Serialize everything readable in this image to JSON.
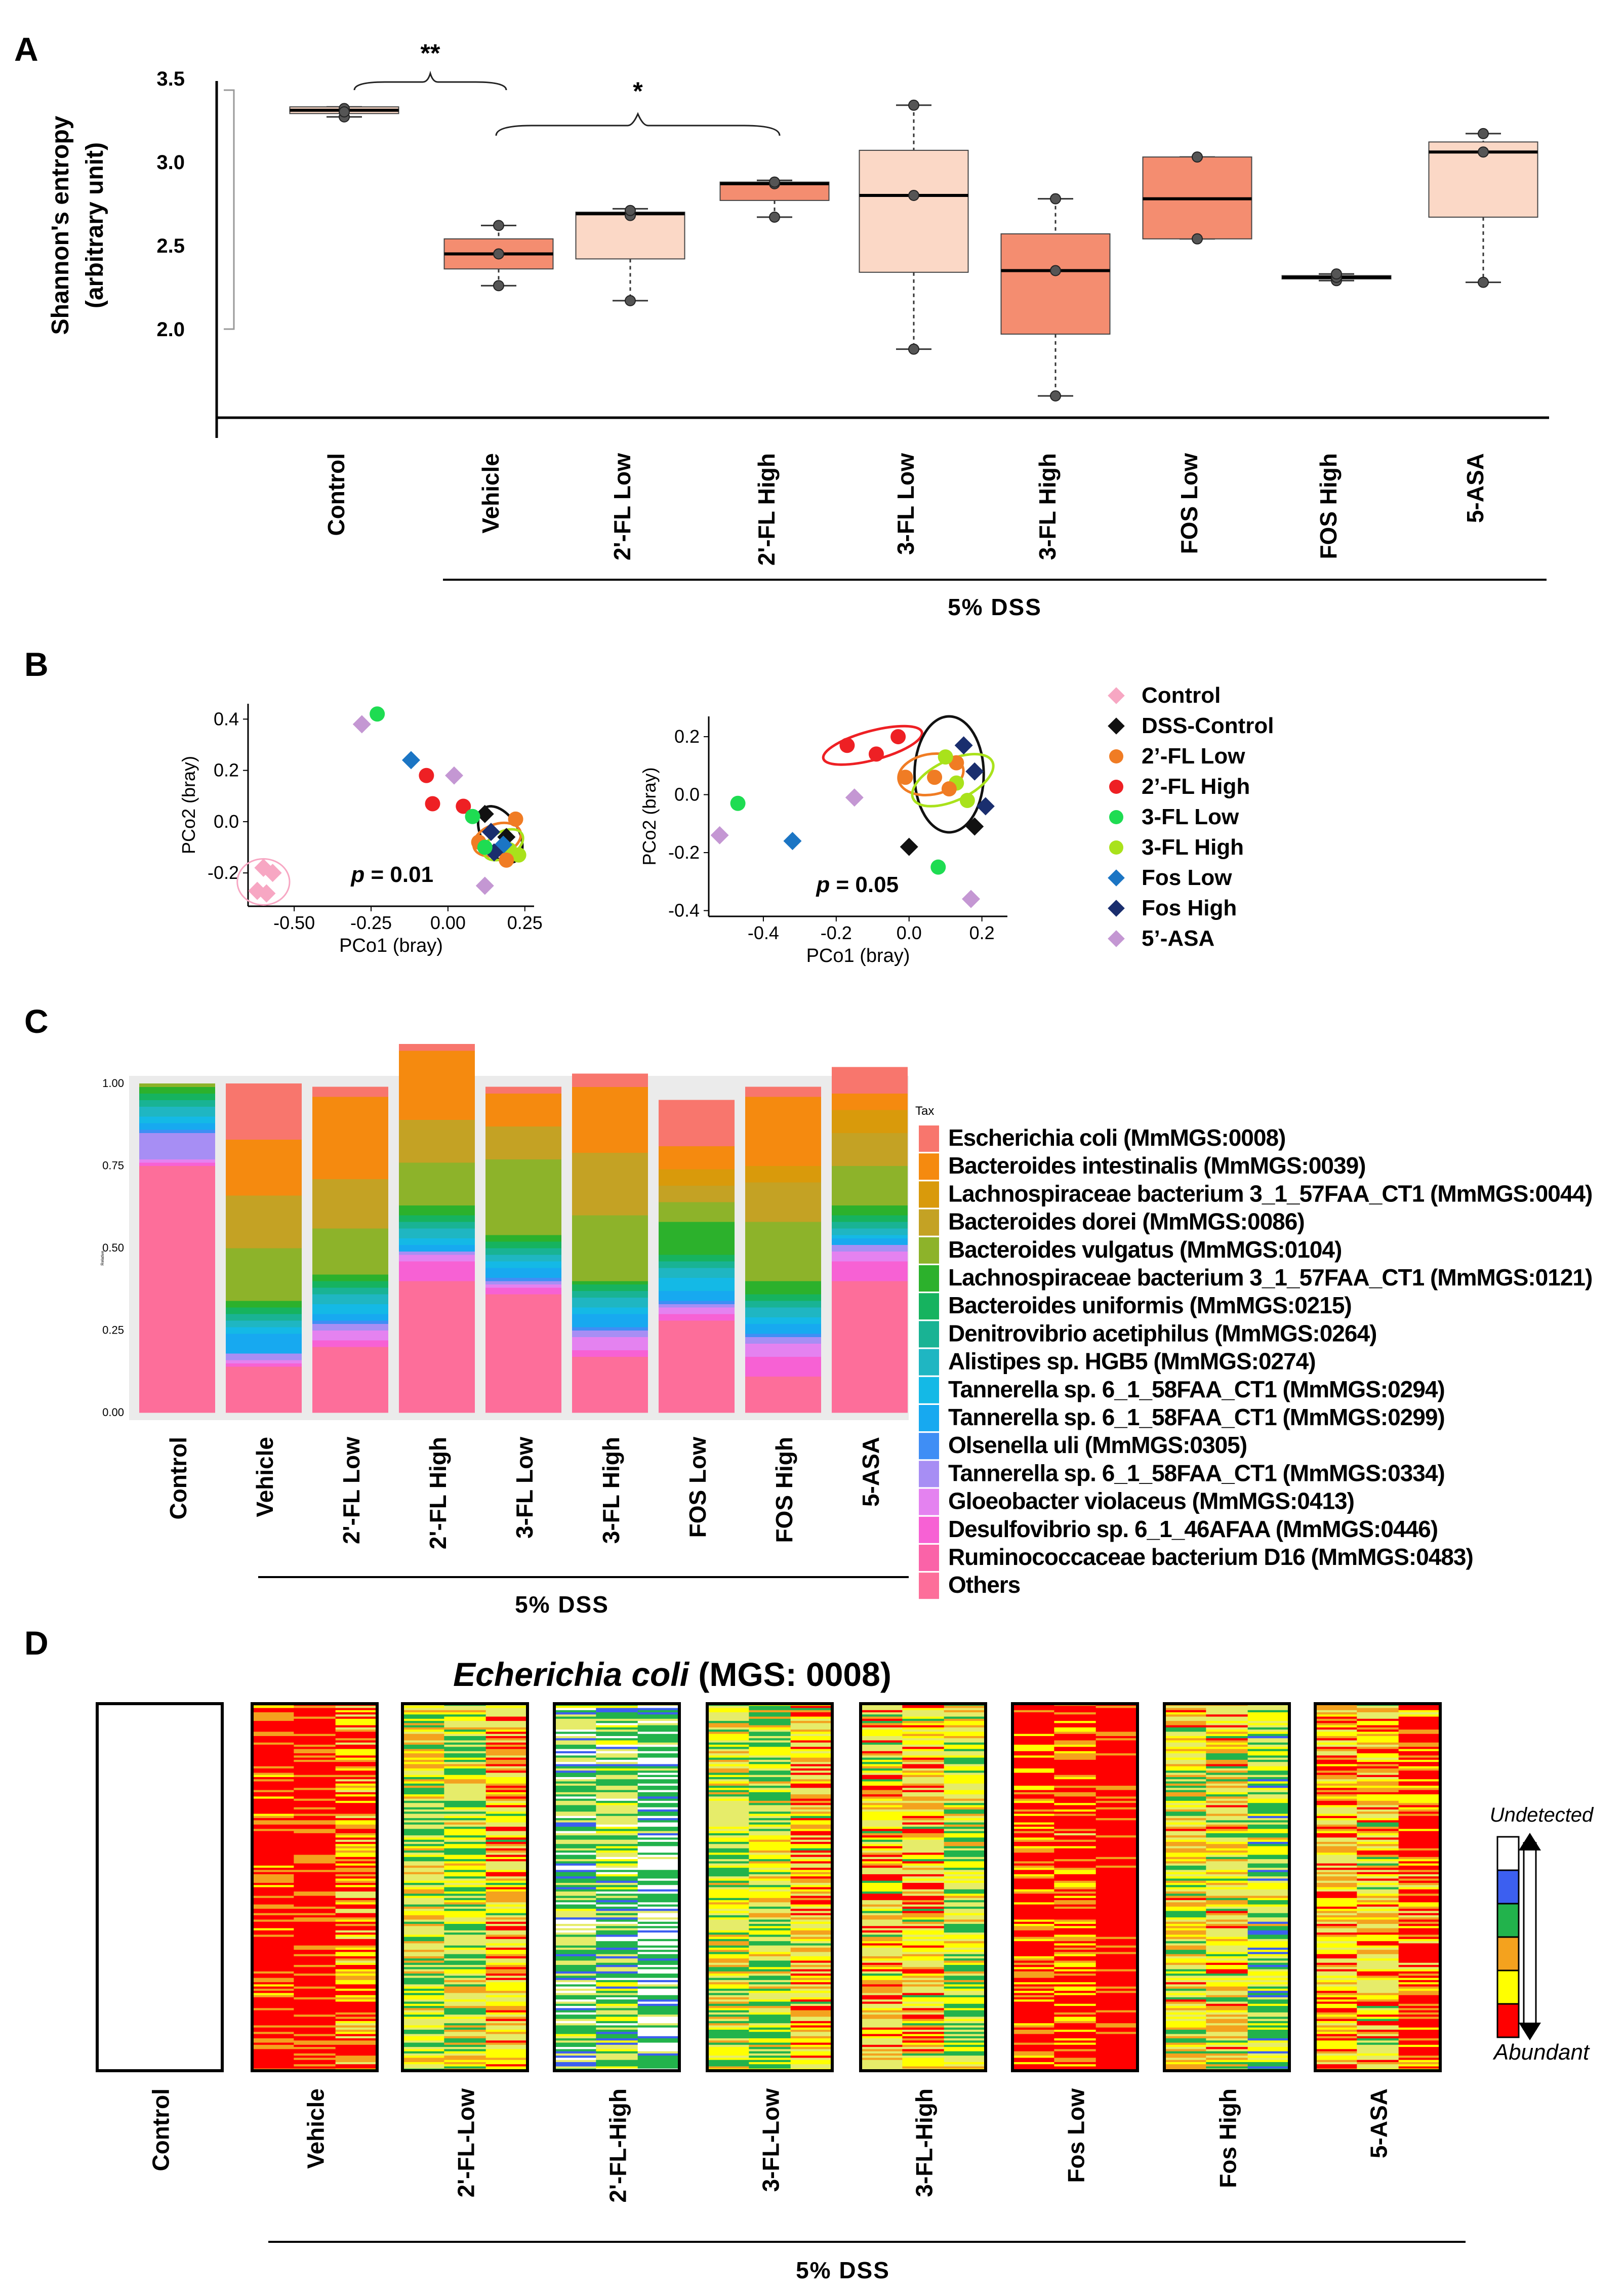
{
  "panels": {
    "a": "A",
    "b": "B",
    "c": "C",
    "d": "D"
  },
  "chart_data": [
    {
      "id": "A",
      "type": "boxplot",
      "ylabel": "Shannon's entropy",
      "ylabel2": "(arbitrary unit)",
      "yticks": [
        "3.5",
        "3.0",
        "2.5",
        "2.0"
      ],
      "ylim": [
        1.5,
        3.5
      ],
      "group_label": "5% DSS",
      "boxes": [
        {
          "label": "Control",
          "color": "#fbd8c6",
          "whisker_low": 3.27,
          "q1": 3.29,
          "median": 3.31,
          "q3": 3.33,
          "whisker_high": 3.33,
          "points": [
            3.27,
            3.32,
            3.3
          ]
        },
        {
          "label": "Vehicle",
          "color": "#f48d70",
          "whisker_low": 2.26,
          "q1": 2.36,
          "median": 2.45,
          "q3": 2.54,
          "whisker_high": 2.62,
          "points": [
            2.26,
            2.45,
            2.62
          ]
        },
        {
          "label": "2'-FL Low",
          "color": "#fbd8c6",
          "whisker_low": 2.17,
          "q1": 2.42,
          "median": 2.69,
          "q3": 2.7,
          "whisker_high": 2.72,
          "points": [
            2.17,
            2.68,
            2.71
          ]
        },
        {
          "label": "2'-FL High",
          "color": "#f48d70",
          "whisker_low": 2.67,
          "q1": 2.77,
          "median": 2.87,
          "q3": 2.88,
          "whisker_high": 2.89,
          "points": [
            2.67,
            2.87,
            2.88
          ]
        },
        {
          "label": "3-FL Low",
          "color": "#fbd8c6",
          "whisker_low": 1.88,
          "q1": 2.34,
          "median": 2.8,
          "q3": 3.07,
          "whisker_high": 3.34,
          "points": [
            1.88,
            2.8,
            3.34
          ]
        },
        {
          "label": "3-FL High",
          "color": "#f48d70",
          "whisker_low": 1.6,
          "q1": 1.97,
          "median": 2.35,
          "q3": 2.57,
          "whisker_high": 2.78,
          "points": [
            1.6,
            2.35,
            2.78
          ]
        },
        {
          "label": "FOS Low",
          "color": "#f48d70",
          "whisker_low": 2.54,
          "q1": 2.54,
          "median": 2.78,
          "q3": 3.03,
          "whisker_high": 3.03,
          "points": [
            2.54,
            3.03
          ]
        },
        {
          "label": "FOS High",
          "color": "#f48d70",
          "whisker_low": 2.29,
          "q1": 2.3,
          "median": 2.31,
          "q3": 2.32,
          "whisker_high": 2.33,
          "points": [
            2.29,
            2.31,
            2.33
          ]
        },
        {
          "label": "5-ASA",
          "color": "#fbd8c6",
          "whisker_low": 2.28,
          "q1": 2.67,
          "median": 3.06,
          "q3": 3.12,
          "whisker_high": 3.17,
          "points": [
            2.28,
            3.06,
            3.17
          ]
        }
      ],
      "significance": [
        {
          "from": "Control",
          "to": "Vehicle",
          "label": "**"
        },
        {
          "from": "Vehicle",
          "to": "2'-FL High",
          "label": "*"
        }
      ]
    },
    {
      "id": "B1",
      "type": "scatter",
      "xlabel": "PCo1 (bray)",
      "ylabel": "PCo2 (bray)",
      "xlim": [
        -0.65,
        0.28
      ],
      "ylim": [
        -0.33,
        0.46
      ],
      "xticks": [
        -0.5,
        -0.25,
        0,
        0.25
      ],
      "xtick_labels": [
        "-0.50",
        "-0.25",
        "0.00",
        "0.25"
      ],
      "yticks": [
        -0.2,
        0,
        0.2,
        0.4
      ],
      "ytick_labels": [
        "-0.2",
        "0.0",
        "0.2",
        "0.4"
      ],
      "p_label": "p",
      "p_value": "= 0.01",
      "points": [
        {
          "x": -0.6,
          "y": -0.18,
          "group": "Control"
        },
        {
          "x": -0.62,
          "y": -0.27,
          "group": "Control"
        },
        {
          "x": -0.59,
          "y": -0.28,
          "group": "Control"
        },
        {
          "x": -0.57,
          "y": -0.2,
          "group": "Control"
        },
        {
          "x": -0.23,
          "y": 0.42,
          "group": "3-FL Low"
        },
        {
          "x": -0.28,
          "y": 0.38,
          "group": "5'-ASA"
        },
        {
          "x": -0.12,
          "y": 0.24,
          "group": "Fos Low"
        },
        {
          "x": -0.07,
          "y": 0.18,
          "group": "2'-FL High"
        },
        {
          "x": 0.02,
          "y": 0.18,
          "group": "5'-ASA"
        },
        {
          "x": -0.05,
          "y": 0.07,
          "group": "2'-FL High"
        },
        {
          "x": 0.05,
          "y": 0.06,
          "group": "2'-FL High"
        },
        {
          "x": 0.12,
          "y": 0.03,
          "group": "DSS-Control"
        },
        {
          "x": 0.08,
          "y": 0.02,
          "group": "3-FL Low"
        },
        {
          "x": 0.22,
          "y": 0.01,
          "group": "2'-FL Low"
        },
        {
          "x": 0.14,
          "y": -0.04,
          "group": "Fos High"
        },
        {
          "x": 0.19,
          "y": -0.06,
          "group": "DSS-Control"
        },
        {
          "x": 0.1,
          "y": -0.08,
          "group": "2'-FL Low"
        },
        {
          "x": 0.2,
          "y": -0.11,
          "group": "3-FL High"
        },
        {
          "x": 0.23,
          "y": -0.13,
          "group": "3-FL High"
        },
        {
          "x": 0.18,
          "y": -0.09,
          "group": "Fos Low"
        },
        {
          "x": 0.15,
          "y": -0.12,
          "group": "Fos High"
        },
        {
          "x": 0.12,
          "y": -0.1,
          "group": "3-FL Low"
        },
        {
          "x": 0.19,
          "y": -0.15,
          "group": "2'-FL Low"
        },
        {
          "x": 0.12,
          "y": -0.25,
          "group": "5'-ASA"
        }
      ],
      "ellipses": [
        {
          "group": "Control",
          "cx": -0.6,
          "cy": -0.235,
          "rx": 0.085,
          "ry": 0.09,
          "angle": 0
        },
        {
          "group": "DSS-Control",
          "cx": 0.17,
          "cy": -0.05,
          "rx": 0.06,
          "ry": 0.12,
          "angle": -30
        },
        {
          "group": "2'-FL Low",
          "cx": 0.16,
          "cy": -0.07,
          "rx": 0.08,
          "ry": 0.06,
          "angle": -20
        },
        {
          "group": "3-FL High",
          "cx": 0.18,
          "cy": -0.09,
          "rx": 0.07,
          "ry": 0.05,
          "angle": -30
        }
      ]
    },
    {
      "id": "B2",
      "type": "scatter",
      "xlabel": "PCo1 (bray)",
      "ylabel": "PCo2 (bray)",
      "xlim": [
        -0.55,
        0.27
      ],
      "ylim": [
        -0.42,
        0.27
      ],
      "xticks": [
        -0.4,
        -0.2,
        0,
        0.2
      ],
      "xtick_labels": [
        "-0.4",
        "-0.2",
        "0.0",
        "0.2"
      ],
      "yticks": [
        -0.4,
        -0.2,
        0,
        0.2
      ],
      "ytick_labels": [
        "-0.4",
        "-0.2",
        "0.0",
        "0.2"
      ],
      "p_label": "p",
      "p_value": "= 0.05",
      "points": [
        {
          "x": -0.17,
          "y": 0.17,
          "group": "2'-FL High"
        },
        {
          "x": -0.03,
          "y": 0.2,
          "group": "2'-FL High"
        },
        {
          "x": -0.09,
          "y": 0.14,
          "group": "2'-FL High"
        },
        {
          "x": 0.15,
          "y": 0.17,
          "group": "Fos High"
        },
        {
          "x": 0.13,
          "y": 0.11,
          "group": "2'-FL Low"
        },
        {
          "x": 0.1,
          "y": 0.13,
          "group": "3-FL High"
        },
        {
          "x": 0.07,
          "y": 0.06,
          "group": "2'-FL Low"
        },
        {
          "x": -0.01,
          "y": 0.06,
          "group": "2'-FL Low"
        },
        {
          "x": 0.18,
          "y": 0.08,
          "group": "Fos High"
        },
        {
          "x": 0.13,
          "y": 0.04,
          "group": "3-FL High"
        },
        {
          "x": 0.11,
          "y": 0.02,
          "group": "2'-FL Low"
        },
        {
          "x": 0.16,
          "y": -0.02,
          "group": "3-FL High"
        },
        {
          "x": 0.21,
          "y": -0.04,
          "group": "Fos High"
        },
        {
          "x": -0.47,
          "y": -0.03,
          "group": "3-FL Low"
        },
        {
          "x": -0.15,
          "y": -0.01,
          "group": "5'-ASA"
        },
        {
          "x": -0.52,
          "y": -0.14,
          "group": "5'-ASA"
        },
        {
          "x": -0.32,
          "y": -0.16,
          "group": "Fos Low"
        },
        {
          "x": 0.0,
          "y": -0.18,
          "group": "DSS-Control"
        },
        {
          "x": 0.18,
          "y": -0.11,
          "group": "DSS-Control"
        },
        {
          "x": 0.08,
          "y": -0.25,
          "group": "3-FL Low"
        },
        {
          "x": 0.17,
          "y": -0.36,
          "group": "5'-ASA"
        }
      ],
      "ellipses": [
        {
          "group": "2'-FL High",
          "cx": -0.1,
          "cy": 0.17,
          "rx": 0.14,
          "ry": 0.05,
          "angle": -15
        },
        {
          "group": "DSS-Control",
          "cx": 0.11,
          "cy": 0.07,
          "rx": 0.095,
          "ry": 0.2,
          "angle": 0
        },
        {
          "group": "2'-FL Low",
          "cx": 0.06,
          "cy": 0.07,
          "rx": 0.09,
          "ry": 0.07,
          "angle": -10
        },
        {
          "group": "3-FL High",
          "cx": 0.12,
          "cy": 0.05,
          "rx": 0.12,
          "ry": 0.07,
          "angle": -25
        }
      ]
    },
    {
      "id": "C",
      "type": "stacked_bar",
      "legend_title": "Tax",
      "ylabel": "Relative",
      "yticks": [
        "0.00",
        "0.25",
        "0.50",
        "0.75",
        "1.00"
      ],
      "categories": [
        "Control",
        "Vehicle",
        "2'-FL Low",
        "2'-FL High",
        "3-FL Low",
        "3-FL High",
        "FOS Low",
        "FOS High",
        "5-ASA"
      ],
      "group_label": "5% DSS",
      "series": [
        {
          "name": "Escherichia coli (MmMGS:0008)",
          "color": "#f8766d",
          "values": [
            0.0,
            0.17,
            0.03,
            0.02,
            0.02,
            0.04,
            0.14,
            0.03,
            0.08
          ]
        },
        {
          "name": "Bacteroides intestinalis (MmMGS:0039)",
          "color": "#f58a0f",
          "values": [
            0.0,
            0.17,
            0.25,
            0.21,
            0.1,
            0.2,
            0.07,
            0.21,
            0.05
          ]
        },
        {
          "name": "Lachnospiraceae bacterium 3_1_57FAA_CT1 (MmMGS:0044)",
          "color": "#d99a0b",
          "values": [
            0.0,
            0.0,
            0.0,
            0.0,
            0.0,
            0.0,
            0.05,
            0.05,
            0.07
          ]
        },
        {
          "name": "Bacteroides dorei (MmMGS:0086)",
          "color": "#c4a224",
          "values": [
            0.0,
            0.16,
            0.15,
            0.13,
            0.1,
            0.19,
            0.05,
            0.12,
            0.1
          ]
        },
        {
          "name": "Bacteroides vulgatus (MmMGS:0104)",
          "color": "#8db32a",
          "values": [
            0.01,
            0.16,
            0.14,
            0.13,
            0.23,
            0.2,
            0.06,
            0.18,
            0.12
          ]
        },
        {
          "name": "Lachnospiraceae bacterium 3_1_57FAA_CT1 (MmMGS:0121)",
          "color": "#2cb12c",
          "values": [
            0.02,
            0.02,
            0.02,
            0.03,
            0.02,
            0.01,
            0.1,
            0.04,
            0.03
          ]
        },
        {
          "name": "Bacteroides uniformis (MmMGS:0215)",
          "color": "#16b35f",
          "values": [
            0.02,
            0.02,
            0.02,
            0.02,
            0.02,
            0.02,
            0.02,
            0.02,
            0.02
          ]
        },
        {
          "name": "Denitrovibrio acetiphilus (MmMGS:0264)",
          "color": "#19b394",
          "values": [
            0.02,
            0.02,
            0.02,
            0.02,
            0.02,
            0.02,
            0.02,
            0.02,
            0.02
          ]
        },
        {
          "name": "Alistipes sp. HGB5 (MmMGS:0274)",
          "color": "#1fb6c2",
          "values": [
            0.03,
            0.02,
            0.03,
            0.03,
            0.02,
            0.03,
            0.03,
            0.03,
            0.02
          ]
        },
        {
          "name": "Tannerella sp. 6_1_58FAA_CT1 (MmMGS:0294)",
          "color": "#14b9e6",
          "values": [
            0.02,
            0.02,
            0.03,
            0.02,
            0.02,
            0.02,
            0.04,
            0.02,
            0.01
          ]
        },
        {
          "name": "Tannerella sp. 6_1_58FAA_CT1 (MmMGS:0299)",
          "color": "#17a9f0",
          "values": [
            0.02,
            0.06,
            0.02,
            0.02,
            0.03,
            0.04,
            0.03,
            0.03,
            0.02
          ]
        },
        {
          "name": "Olsenella uli (MmMGS:0305)",
          "color": "#3f8ef5",
          "values": [
            0.01,
            0.0,
            0.01,
            0.0,
            0.01,
            0.01,
            0.01,
            0.01,
            0.0
          ]
        },
        {
          "name": "Tannerella sp. 6_1_58FAA_CT1 (MmMGS:0334)",
          "color": "#a78ef4",
          "values": [
            0.08,
            0.02,
            0.02,
            0.01,
            0.01,
            0.02,
            0.01,
            0.02,
            0.02
          ]
        },
        {
          "name": "Gloeobacter violaceus (MmMGS:0413)",
          "color": "#e482f0",
          "values": [
            0.01,
            0.01,
            0.03,
            0.02,
            0.01,
            0.04,
            0.02,
            0.04,
            0.03
          ]
        },
        {
          "name": "Desulfovibrio sp. 6_1_46AFAA (MmMGS:0446)",
          "color": "#f761d4",
          "values": [
            0.01,
            0.01,
            0.02,
            0.06,
            0.02,
            0.02,
            0.02,
            0.06,
            0.06
          ]
        },
        {
          "name": "Ruminococcaceae bacterium D16 (MmMGS:0483)",
          "color": "#fa63a8",
          "values": [
            0.0,
            0.0,
            0.0,
            0.0,
            0.0,
            0.0,
            0.0,
            0.0,
            0.0
          ]
        },
        {
          "name": "Others",
          "color": "#fd6e9a",
          "values": [
            0.75,
            0.14,
            0.2,
            0.4,
            0.36,
            0.17,
            0.28,
            0.11,
            0.4
          ]
        }
      ]
    },
    {
      "id": "D",
      "type": "heatmap",
      "title_italic": "Echerichia coli",
      "title_rest": "(MGS: 0008)",
      "columns": [
        "Control",
        "Vehicle",
        "2'-FL-Low",
        "2'-FL-High",
        "3-FL-Low",
        "3-FL-High",
        "Fos Low",
        "Fos High",
        "5-ASA"
      ],
      "group_label": "5% DSS",
      "scale_top": "Undetected",
      "scale_bottom": "Abundant",
      "scale_colors": [
        "#ffffff",
        "#3c5ff0",
        "#22b34c",
        "#f4a21e",
        "#ffff00",
        "#ff0000"
      ],
      "abundance_profile": [
        0,
        0.92,
        0.55,
        0.3,
        0.55,
        0.62,
        0.9,
        0.55,
        0.72
      ]
    }
  ]
}
